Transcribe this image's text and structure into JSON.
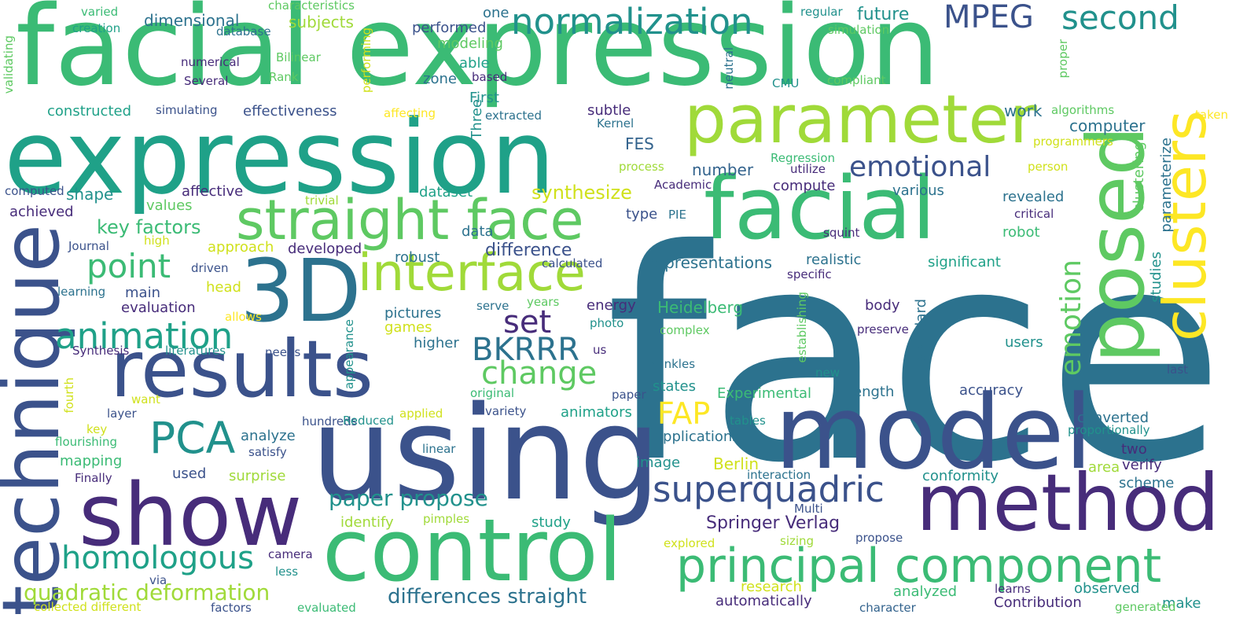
{
  "palette": {
    "dark_purple": "#472c7a",
    "indigo": "#3b528b",
    "slate_blue": "#33638d",
    "steel_teal": "#2c728e",
    "teal": "#21918c",
    "teal_green": "#1fa188",
    "green": "#3bbb75",
    "light_green": "#5ec962",
    "lime": "#a0da39",
    "yellow": "#d0e11c",
    "bright_yellow": "#fde725"
  },
  "words": [
    {
      "text": "facial expression",
      "color": "#3bbb75"
    },
    {
      "text": "face",
      "color": "#2c728e"
    },
    {
      "text": "expression",
      "color": "#1fa188"
    },
    {
      "text": "using",
      "color": "#3b528b"
    },
    {
      "text": "model",
      "color": "#3b528b"
    },
    {
      "text": "control",
      "color": "#3bbb75"
    },
    {
      "text": "show",
      "color": "#472c7a"
    },
    {
      "text": "method",
      "color": "#472c7a"
    },
    {
      "text": "results",
      "color": "#3b528b"
    },
    {
      "text": "3D",
      "color": "#2c728e"
    },
    {
      "text": "facial",
      "color": "#3bbb75"
    },
    {
      "text": "technique",
      "color": "#3b528b"
    },
    {
      "text": "posed",
      "color": "#5ec962"
    },
    {
      "text": "clusters",
      "color": "#fde725"
    },
    {
      "text": "parameter",
      "color": "#a0da39"
    },
    {
      "text": "principal component",
      "color": "#3bbb75"
    },
    {
      "text": "straight face",
      "color": "#5ec962"
    },
    {
      "text": "interface",
      "color": "#a0da39"
    },
    {
      "text": "normalization",
      "color": "#21918c"
    },
    {
      "text": "superquadric",
      "color": "#3b528b"
    },
    {
      "text": "animation",
      "color": "#1fa188"
    },
    {
      "text": "homologous",
      "color": "#1fa188"
    },
    {
      "text": "PCA",
      "color": "#21918c"
    },
    {
      "text": "BKRRR",
      "color": "#2c728e"
    },
    {
      "text": "change",
      "color": "#5ec962"
    },
    {
      "text": "set",
      "color": "#472c7a"
    },
    {
      "text": "FAP",
      "color": "#fde725"
    },
    {
      "text": "point",
      "color": "#3bbb75"
    },
    {
      "text": "second",
      "color": "#21918c"
    },
    {
      "text": "MPEG",
      "color": "#3b528b"
    },
    {
      "text": "emotional",
      "color": "#3b528b"
    },
    {
      "text": "emotion",
      "color": "#5ec962"
    },
    {
      "text": "quadratic deformation",
      "color": "#a0da39"
    },
    {
      "text": "differences straight",
      "color": "#2c728e"
    },
    {
      "text": "paper propose",
      "color": "#21918c"
    },
    {
      "text": "Springer Verlag",
      "color": "#472c7a"
    },
    {
      "text": "synthesize",
      "color": "#d0e11c"
    },
    {
      "text": "key factors",
      "color": "#3bbb75"
    },
    {
      "text": "difference",
      "color": "#3b528b"
    },
    {
      "text": "representations",
      "color": "#2c728e"
    },
    {
      "text": "future",
      "color": "#21918c"
    },
    {
      "text": "dimensional",
      "color": "#2c728e"
    },
    {
      "text": "subjects",
      "color": "#a0da39"
    },
    {
      "text": "performed",
      "color": "#3b528b"
    },
    {
      "text": "modeling",
      "color": "#5ec962"
    },
    {
      "text": "able",
      "color": "#1fa188"
    },
    {
      "text": "zone",
      "color": "#2c728e"
    },
    {
      "text": "First",
      "color": "#21918c"
    },
    {
      "text": "constructed",
      "color": "#1fa188"
    },
    {
      "text": "effectiveness",
      "color": "#3b528b"
    },
    {
      "text": "subtle",
      "color": "#472c7a"
    },
    {
      "text": "FES",
      "color": "#33638d"
    },
    {
      "text": "number",
      "color": "#33638d"
    },
    {
      "text": "shape",
      "color": "#21918c"
    },
    {
      "text": "affective",
      "color": "#472c7a"
    },
    {
      "text": "values",
      "color": "#5ec962"
    },
    {
      "text": "achieved",
      "color": "#472c7a"
    },
    {
      "text": "computer",
      "color": "#2c728e"
    },
    {
      "text": "work",
      "color": "#2c728e"
    },
    {
      "text": "compute",
      "color": "#472c7a"
    },
    {
      "text": "various",
      "color": "#2c728e"
    },
    {
      "text": "revealed",
      "color": "#2c728e"
    },
    {
      "text": "dataset",
      "color": "#1fa188"
    },
    {
      "text": "type",
      "color": "#3b528b"
    },
    {
      "text": "data",
      "color": "#2c728e"
    },
    {
      "text": "robust",
      "color": "#2c728e"
    },
    {
      "text": "developed",
      "color": "#472c7a"
    },
    {
      "text": "approach",
      "color": "#d0e11c"
    },
    {
      "text": "realistic",
      "color": "#2c728e"
    },
    {
      "text": "significant",
      "color": "#1fa188"
    },
    {
      "text": "robot",
      "color": "#3bbb75"
    },
    {
      "text": "main",
      "color": "#3b528b"
    },
    {
      "text": "head",
      "color": "#d0e11c"
    },
    {
      "text": "evaluation",
      "color": "#472c7a"
    },
    {
      "text": "energy",
      "color": "#472c7a"
    },
    {
      "text": "Heidelberg",
      "color": "#3bbb75"
    },
    {
      "text": "body",
      "color": "#472c7a"
    },
    {
      "text": "pictures",
      "color": "#2c728e"
    },
    {
      "text": "games",
      "color": "#d0e11c"
    },
    {
      "text": "higher",
      "color": "#2c728e"
    },
    {
      "text": "users",
      "color": "#21918c"
    },
    {
      "text": "studies",
      "color": "#21918c"
    },
    {
      "text": "standard",
      "color": "#2c728e"
    },
    {
      "text": "accuracy",
      "color": "#3b528b"
    },
    {
      "text": "states",
      "color": "#21918c"
    },
    {
      "text": "Experimental",
      "color": "#3bbb75"
    },
    {
      "text": "length",
      "color": "#2c728e"
    },
    {
      "text": "animators",
      "color": "#1fa188"
    },
    {
      "text": "converted",
      "color": "#2c728e"
    },
    {
      "text": "applications",
      "color": "#2c728e"
    },
    {
      "text": "analyze",
      "color": "#2c728e"
    },
    {
      "text": "image",
      "color": "#21918c"
    },
    {
      "text": "Berlin",
      "color": "#d0e11c"
    },
    {
      "text": "two",
      "color": "#472c7a"
    },
    {
      "text": "verify",
      "color": "#472c7a"
    },
    {
      "text": "area",
      "color": "#a0da39"
    },
    {
      "text": "mapping",
      "color": "#3bbb75"
    },
    {
      "text": "used",
      "color": "#3b528b"
    },
    {
      "text": "surprise",
      "color": "#a0da39"
    },
    {
      "text": "conformity",
      "color": "#21918c"
    },
    {
      "text": "scheme",
      "color": "#2c728e"
    },
    {
      "text": "identify",
      "color": "#a0da39"
    },
    {
      "text": "study",
      "color": "#1fa188"
    },
    {
      "text": "observed",
      "color": "#21918c"
    },
    {
      "text": "analyzed",
      "color": "#3bbb75"
    },
    {
      "text": "research",
      "color": "#d0e11c"
    },
    {
      "text": "automatically",
      "color": "#472c7a"
    },
    {
      "text": "Contribution",
      "color": "#472c7a"
    },
    {
      "text": "make",
      "color": "#21918c"
    },
    {
      "text": "characteristics",
      "color": "#5ec962"
    },
    {
      "text": "varied",
      "color": "#3bbb75"
    },
    {
      "text": "creation",
      "color": "#1fa188"
    },
    {
      "text": "database",
      "color": "#2c728e"
    },
    {
      "text": "one",
      "color": "#2c728e"
    },
    {
      "text": "regular",
      "color": "#21918c"
    },
    {
      "text": "simulation",
      "color": "#5ec962"
    },
    {
      "text": "validating",
      "color": "#5ec962"
    },
    {
      "text": "performing",
      "color": "#d0e11c"
    },
    {
      "text": "Bilinear",
      "color": "#5ec962"
    },
    {
      "text": "numerical",
      "color": "#472c7a"
    },
    {
      "text": "Rank",
      "color": "#5ec962"
    },
    {
      "text": "Several",
      "color": "#472c7a"
    },
    {
      "text": "based",
      "color": "#472c7a"
    },
    {
      "text": "neutral",
      "color": "#2c728e"
    },
    {
      "text": "CMU",
      "color": "#21918c"
    },
    {
      "text": "compliant",
      "color": "#5ec962"
    },
    {
      "text": "proper",
      "color": "#5ec962"
    },
    {
      "text": "simulating",
      "color": "#3b528b"
    },
    {
      "text": "affecting",
      "color": "#fde725"
    },
    {
      "text": "extracted",
      "color": "#2c728e"
    },
    {
      "text": "Kernel",
      "color": "#2c728e"
    },
    {
      "text": "algorithms",
      "color": "#5ec962"
    },
    {
      "text": "taken",
      "color": "#fde725"
    },
    {
      "text": "programmers",
      "color": "#d0e11c"
    },
    {
      "text": "process",
      "color": "#a0da39"
    },
    {
      "text": "Regression",
      "color": "#3bbb75"
    },
    {
      "text": "utilize",
      "color": "#472c7a"
    },
    {
      "text": "person",
      "color": "#d0e11c"
    },
    {
      "text": "Three",
      "color": "#21918c"
    },
    {
      "text": "computed",
      "color": "#3b528b"
    },
    {
      "text": "trivial",
      "color": "#a0da39"
    },
    {
      "text": "Academic",
      "color": "#472c7a"
    },
    {
      "text": "high",
      "color": "#d0e11c"
    },
    {
      "text": "PIE",
      "color": "#2c728e"
    },
    {
      "text": "critical",
      "color": "#472c7a"
    },
    {
      "text": "parameterize",
      "color": "#2c728e"
    },
    {
      "text": "clustering",
      "color": "#5ec962"
    },
    {
      "text": "Journal",
      "color": "#3b528b"
    },
    {
      "text": "squint",
      "color": "#472c7a"
    },
    {
      "text": "specific",
      "color": "#472c7a"
    },
    {
      "text": "calculated",
      "color": "#3b528b"
    },
    {
      "text": "driven",
      "color": "#3b528b"
    },
    {
      "text": "learning",
      "color": "#2c728e"
    },
    {
      "text": "establishing",
      "color": "#5ec962"
    },
    {
      "text": "serve",
      "color": "#2c728e"
    },
    {
      "text": "allows",
      "color": "#fde725"
    },
    {
      "text": "years",
      "color": "#5ec962"
    },
    {
      "text": "photo",
      "color": "#21918c"
    },
    {
      "text": "complex",
      "color": "#5ec962"
    },
    {
      "text": "preserve",
      "color": "#472c7a"
    },
    {
      "text": "Synthesis",
      "color": "#472c7a"
    },
    {
      "text": "literatures",
      "color": "#21918c"
    },
    {
      "text": "needs",
      "color": "#3b528b"
    },
    {
      "text": "us",
      "color": "#472c7a"
    },
    {
      "text": "wrinkles",
      "color": "#2c728e"
    },
    {
      "text": "new",
      "color": "#21918c"
    },
    {
      "text": "last",
      "color": "#3b528b"
    },
    {
      "text": "appearance",
      "color": "#21918c"
    },
    {
      "text": "fourth",
      "color": "#d0e11c"
    },
    {
      "text": "want",
      "color": "#d0e11c"
    },
    {
      "text": "original",
      "color": "#3bbb75"
    },
    {
      "text": "paper",
      "color": "#3b528b"
    },
    {
      "text": "layer",
      "color": "#3b528b"
    },
    {
      "text": "hundreds",
      "color": "#3b528b"
    },
    {
      "text": "Reduced",
      "color": "#21918c"
    },
    {
      "text": "applied",
      "color": "#d0e11c"
    },
    {
      "text": "variety",
      "color": "#3b528b"
    },
    {
      "text": "tables",
      "color": "#21918c"
    },
    {
      "text": "proportionally",
      "color": "#21918c"
    },
    {
      "text": "key",
      "color": "#d0e11c"
    },
    {
      "text": "flourishing",
      "color": "#3bbb75"
    },
    {
      "text": "satisfy",
      "color": "#3b528b"
    },
    {
      "text": "linear",
      "color": "#2c728e"
    },
    {
      "text": "Finally",
      "color": "#472c7a"
    },
    {
      "text": "interaction",
      "color": "#2c728e"
    },
    {
      "text": "Multi",
      "color": "#3b528b"
    },
    {
      "text": "pimples",
      "color": "#a0da39"
    },
    {
      "text": "explored",
      "color": "#d0e11c"
    },
    {
      "text": "sizing",
      "color": "#a0da39"
    },
    {
      "text": "propose",
      "color": "#3b528b"
    },
    {
      "text": "camera",
      "color": "#472c7a"
    },
    {
      "text": "less",
      "color": "#21918c"
    },
    {
      "text": "via",
      "color": "#3b528b"
    },
    {
      "text": "learns",
      "color": "#472c7a"
    },
    {
      "text": "collected different",
      "color": "#d0e11c"
    },
    {
      "text": "factors",
      "color": "#3b528b"
    },
    {
      "text": "evaluated",
      "color": "#3bbb75"
    },
    {
      "text": "character",
      "color": "#33638d"
    },
    {
      "text": "generated",
      "color": "#5ec962"
    },
    {
      "text": "",
      "color": "#21918c"
    },
    {
      "text": "",
      "color": "#1fa188"
    },
    {
      "text": "",
      "color": "#2c728e"
    },
    {
      "text": "",
      "color": "#3b528b"
    },
    {
      "text": "",
      "color": "#21918c"
    },
    {
      "text": "",
      "color": "#5ec962"
    }
  ]
}
